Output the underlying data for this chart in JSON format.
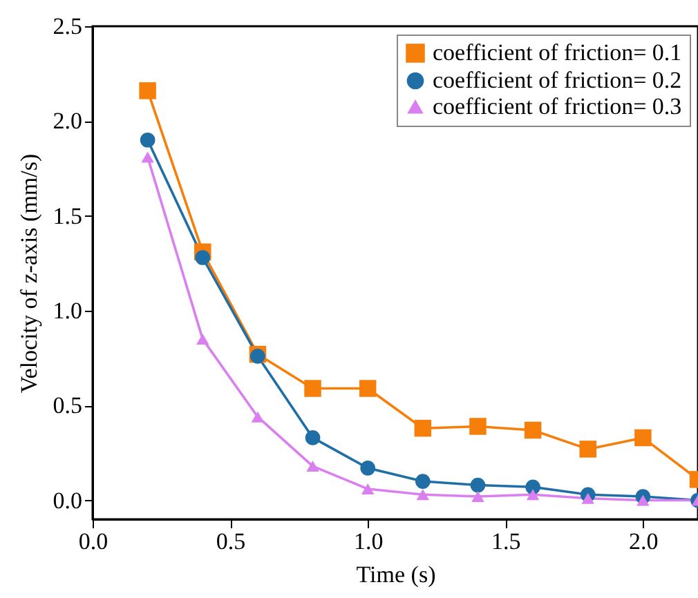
{
  "chart_data": {
    "type": "line",
    "xlabel": "Time (s)",
    "ylabel": "Velocity of z-axis (mm/s)",
    "x": [
      0.2,
      0.4,
      0.6,
      0.8,
      1.0,
      1.2,
      1.4,
      1.6,
      1.8,
      2.0,
      2.2
    ],
    "series": [
      {
        "name": "coefficient of friction= 0.1",
        "color": "#f57f0a",
        "marker": "square",
        "values": [
          2.16,
          1.31,
          0.77,
          0.59,
          0.59,
          0.38,
          0.39,
          0.37,
          0.27,
          0.33,
          0.11
        ]
      },
      {
        "name": "coefficient of friction= 0.2",
        "color": "#1f6ea6",
        "marker": "circle",
        "values": [
          1.9,
          1.28,
          0.76,
          0.33,
          0.17,
          0.1,
          0.08,
          0.07,
          0.03,
          0.02,
          0.0
        ]
      },
      {
        "name": "coefficient of friction= 0.3",
        "color": "#d97ff0",
        "marker": "triangle",
        "values": [
          1.81,
          0.85,
          0.44,
          0.18,
          0.06,
          0.03,
          0.02,
          0.03,
          0.01,
          0.0,
          0.0
        ]
      }
    ],
    "xlim": [
      0,
      2.2
    ],
    "ylim": [
      -0.1,
      2.5
    ],
    "xticks": [
      {
        "value": 0,
        "label": "0.0"
      },
      0.5,
      {
        "value": 1,
        "label": "1.0"
      },
      1.5,
      {
        "value": 2,
        "label": "2.0"
      }
    ],
    "yticks": [
      {
        "value": 0,
        "label": "0.0"
      },
      0.5,
      {
        "value": 1,
        "label": "1.0"
      },
      1.5,
      {
        "value": 2,
        "label": "2.0"
      },
      2.5
    ],
    "grid": false,
    "legend": "top right",
    "line_style": "solid"
  }
}
